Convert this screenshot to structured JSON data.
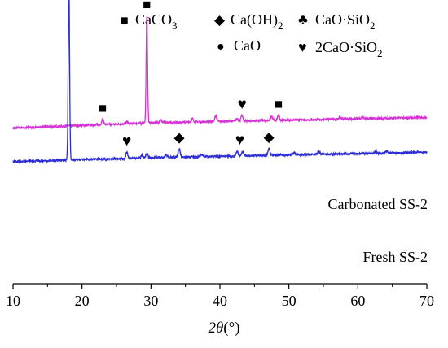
{
  "chart_data": {
    "type": "line",
    "x_axis": {
      "label_var": "2θ",
      "label_unit": "(°)",
      "range": [
        10,
        70
      ],
      "ticks": [
        "10",
        "20",
        "30",
        "40",
        "50",
        "60",
        "70"
      ]
    },
    "y_axis": {
      "shown": false
    },
    "grid": false,
    "legend": {
      "placement": "top",
      "entries": [
        {
          "symbol": "square",
          "glyph": "■",
          "text": "CaCO",
          "sub": "3"
        },
        {
          "symbol": "diamond",
          "glyph": "◆",
          "text": "Ca(OH)",
          "sub": "2"
        },
        {
          "symbol": "circle",
          "glyph": "●",
          "text": "CaO",
          "sub": ""
        },
        {
          "symbol": "club",
          "glyph": "♣",
          "text": "CaO·SiO",
          "sub": "2"
        },
        {
          "symbol": "heart",
          "glyph": "♥",
          "text": "2CaO·SiO",
          "sub": "2"
        }
      ]
    },
    "series": [
      {
        "name": "Carbonated SS-2",
        "color": "#d633d6",
        "baseline": [
          [
            10,
            232
          ],
          [
            20,
            236
          ],
          [
            30,
            240
          ],
          [
            40,
            242
          ],
          [
            50,
            244
          ],
          [
            60,
            246
          ],
          [
            70,
            248
          ]
        ],
        "peaks": [
          {
            "x": 23.0,
            "h": 8
          },
          {
            "x": 26.5,
            "h": 3
          },
          {
            "x": 29.4,
            "h": 160
          },
          {
            "x": 31.4,
            "h": 4
          },
          {
            "x": 36.0,
            "h": 5
          },
          {
            "x": 39.4,
            "h": 9
          },
          {
            "x": 42.5,
            "h": 4
          },
          {
            "x": 43.2,
            "h": 8
          },
          {
            "x": 47.5,
            "h": 6
          },
          {
            "x": 48.5,
            "h": 8
          },
          {
            "x": 57.4,
            "h": 3
          },
          {
            "x": 60.7,
            "h": 3
          }
        ],
        "markers": [
          {
            "x": 23.0,
            "symbol": "square"
          },
          {
            "x": 29.4,
            "symbol": "square"
          },
          {
            "x": 43.2,
            "symbol": "heart"
          },
          {
            "x": 48.5,
            "symbol": "square"
          }
        ]
      },
      {
        "name": "Fresh SS-2",
        "color": "#2d2dd6",
        "baseline": [
          [
            10,
            182
          ],
          [
            20,
            185
          ],
          [
            30,
            188
          ],
          [
            40,
            190
          ],
          [
            50,
            192
          ],
          [
            60,
            194
          ],
          [
            70,
            196
          ]
        ],
        "peaks": [
          {
            "x": 18.1,
            "h": 270
          },
          {
            "x": 26.5,
            "h": 9
          },
          {
            "x": 28.7,
            "h": 4
          },
          {
            "x": 29.4,
            "h": 6
          },
          {
            "x": 32.2,
            "h": 4
          },
          {
            "x": 34.1,
            "h": 13
          },
          {
            "x": 37.4,
            "h": 3
          },
          {
            "x": 42.5,
            "h": 7
          },
          {
            "x": 43.3,
            "h": 6
          },
          {
            "x": 47.1,
            "h": 11
          },
          {
            "x": 50.8,
            "h": 4
          },
          {
            "x": 54.4,
            "h": 4
          },
          {
            "x": 62.6,
            "h": 3
          },
          {
            "x": 64.2,
            "h": 3
          }
        ],
        "markers": [
          {
            "x": 18.1,
            "symbol": "diamond"
          },
          {
            "x": 26.5,
            "symbol": "heart"
          },
          {
            "x": 34.1,
            "symbol": "diamond"
          },
          {
            "x": 42.9,
            "symbol": "heart"
          },
          {
            "x": 47.1,
            "symbol": "diamond"
          }
        ]
      }
    ]
  }
}
